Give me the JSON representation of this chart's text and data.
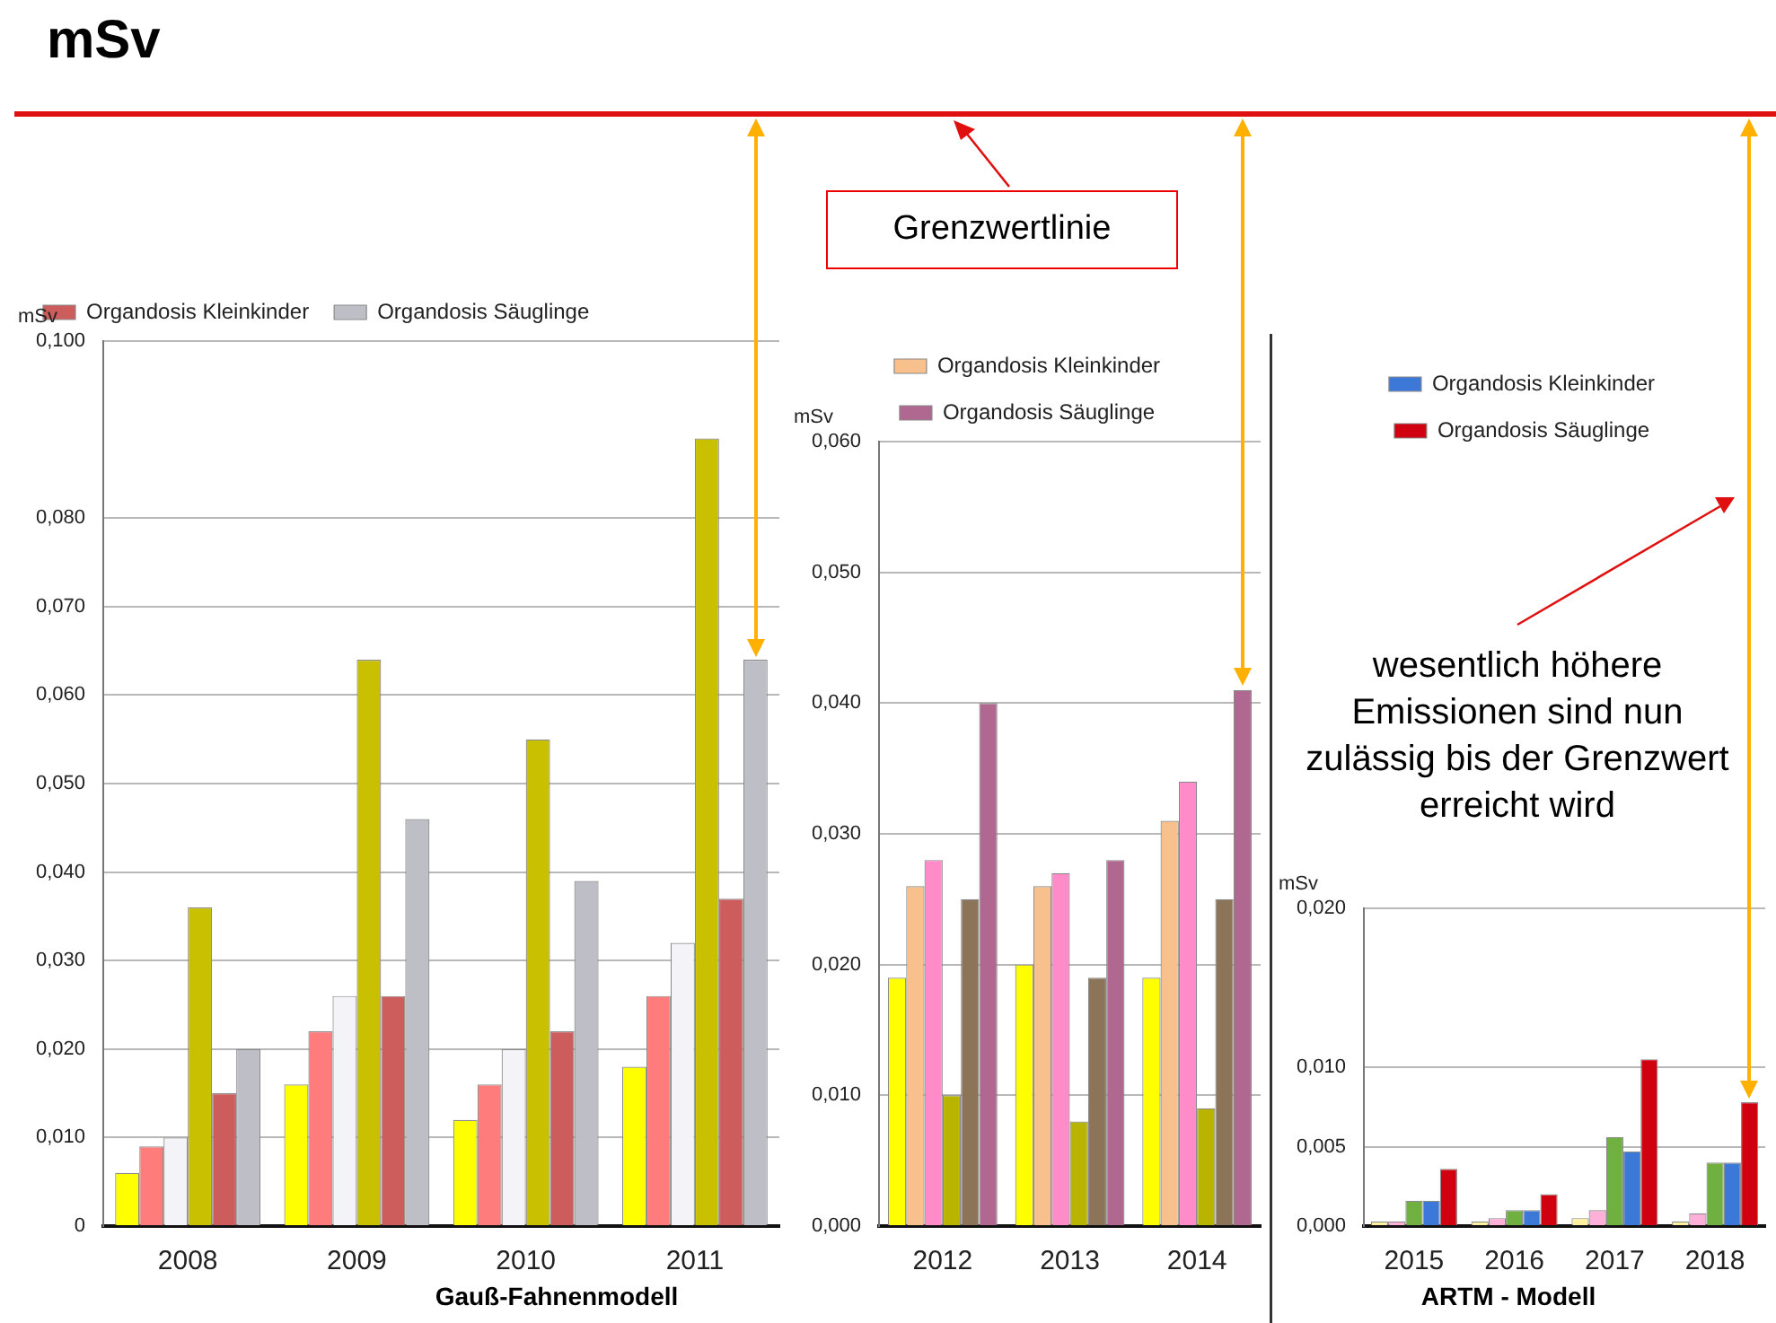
{
  "chart_data": [
    {
      "type": "other",
      "title": "mSv",
      "annotations": [
        "Grenzwertlinie",
        "wesentlich höhere Emissionen sind nun zulässig bis der Grenzwert erreicht wird",
        "Gauß-Fahnenmodell",
        "ARTM - Modell"
      ]
    },
    {
      "type": "bar",
      "ylabel": "mSv",
      "categories": [
        "2008",
        "2009",
        "2010",
        "2011"
      ],
      "ylim": [
        0,
        0.1
      ],
      "yticks": [
        0,
        {
          "value": 0.01,
          "label": "0,010"
        },
        {
          "value": 0.02,
          "label": "0,020"
        },
        {
          "value": 0.03,
          "label": "0,030"
        },
        {
          "value": 0.04,
          "label": "0,040"
        },
        {
          "value": 0.05,
          "label": "0,050"
        },
        {
          "value": 0.06,
          "label": "0,060"
        },
        {
          "value": 0.07,
          "label": "0,070"
        },
        {
          "value": 0.08,
          "label": "0,080"
        },
        {
          "value": 0.1,
          "label": "0,100"
        }
      ],
      "grid": "y",
      "legend": "top left",
      "series": [
        {
          "color": "#ffff00",
          "values": [
            0.006,
            0.016,
            0.012,
            0.018
          ]
        },
        {
          "color": "#ff7c7c",
          "values": [
            0.009,
            0.022,
            0.016,
            0.026
          ]
        },
        {
          "color": "#f4f4f8",
          "values": [
            0.01,
            0.026,
            0.02,
            0.032
          ]
        },
        {
          "color": "#c8c000",
          "values": [
            0.036,
            0.064,
            0.055,
            0.089
          ]
        },
        {
          "name": "Organdosis Kleinkinder",
          "color": "#cd5c5c",
          "values": [
            0.015,
            0.026,
            0.022,
            0.037
          ]
        },
        {
          "name": "Organdosis Säuglinge",
          "color": "#bebec6",
          "values": [
            0.02,
            0.046,
            0.039,
            0.064
          ]
        }
      ]
    },
    {
      "type": "bar",
      "ylabel": "mSv",
      "categories": [
        "2012",
        "2013",
        "2014"
      ],
      "ylim": [
        0,
        0.06
      ],
      "yticks": [
        {
          "value": 0,
          "label": "0,000"
        },
        {
          "value": 0.01,
          "label": "0,010"
        },
        {
          "value": 0.02,
          "label": "0,020"
        },
        {
          "value": 0.03,
          "label": "0,030"
        },
        {
          "value": 0.04,
          "label": "0,040"
        },
        {
          "value": 0.05,
          "label": "0,050"
        },
        {
          "value": 0.06,
          "label": "0,060"
        }
      ],
      "grid": "y",
      "legend": "top",
      "series": [
        {
          "color": "#ffff00",
          "values": [
            0.019,
            0.02,
            0.019
          ]
        },
        {
          "name": "Organdosis Kleinkinder",
          "color": "#f8c08c",
          "values": [
            0.026,
            0.026,
            0.031
          ]
        },
        {
          "color": "#ff8cc8",
          "values": [
            0.028,
            0.027,
            0.034
          ]
        },
        {
          "color": "#b8b400",
          "values": [
            0.01,
            0.008,
            0.009
          ]
        },
        {
          "color": "#8c7458",
          "values": [
            0.025,
            0.019,
            0.025
          ]
        },
        {
          "name": "Organdosis Säuglinge",
          "color": "#b06890",
          "values": [
            0.04,
            0.028,
            0.041
          ]
        }
      ]
    },
    {
      "type": "bar",
      "ylabel": "mSv",
      "categories": [
        "2015",
        "2016",
        "2017",
        "2018"
      ],
      "ylim": [
        0,
        0.02
      ],
      "yticks": [
        {
          "value": 0,
          "label": "0,000"
        },
        {
          "value": 0.005,
          "label": "0,005"
        },
        {
          "value": 0.01,
          "label": "0,010"
        },
        {
          "value": 0.02,
          "label": "0,020"
        }
      ],
      "grid": "y",
      "legend": "top",
      "series": [
        {
          "color": "#fff0a0",
          "values": [
            0.0003,
            0.0003,
            0.0005,
            0.0003
          ]
        },
        {
          "color": "#ffb0d8",
          "values": [
            0.0003,
            0.0005,
            0.001,
            0.0008
          ]
        },
        {
          "color": "#70b040",
          "values": [
            0.0016,
            0.001,
            0.0056,
            0.004
          ]
        },
        {
          "name": "Organdosis Kleinkinder",
          "color": "#3c78d8",
          "values": [
            0.0016,
            0.001,
            0.0047,
            0.004
          ]
        },
        {
          "name": "Organdosis Säuglinge",
          "color": "#d00010",
          "values": [
            0.0036,
            0.002,
            0.0105,
            0.0078
          ]
        }
      ]
    }
  ]
}
